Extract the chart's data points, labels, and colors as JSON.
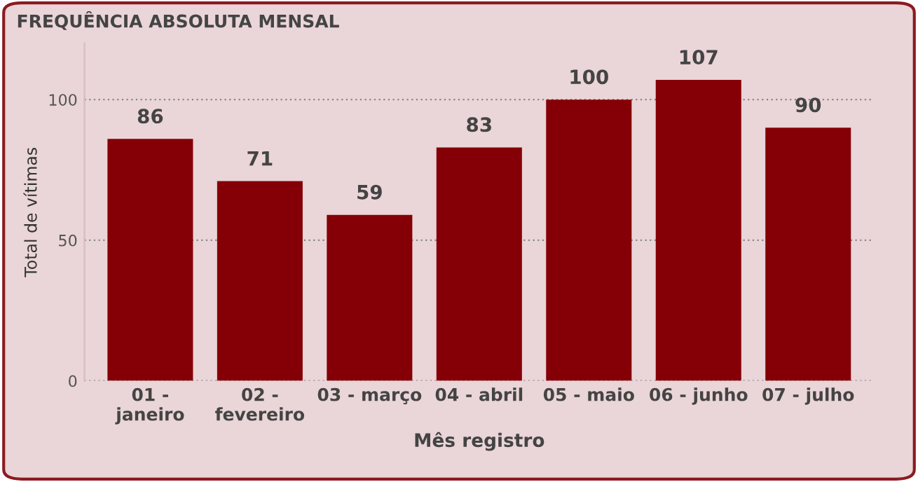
{
  "chart_data": {
    "type": "bar",
    "title": "FREQUÊNCIA ABSOLUTA MENSAL",
    "xlabel": "Mês registro",
    "ylabel": "Total de vítimas",
    "categories": [
      "01 -\njaneiro",
      "02 -\nfevereiro",
      "03 - março",
      "04 - abril",
      "05 - maio",
      "06 - junho",
      "07 - julho"
    ],
    "values": [
      86,
      71,
      59,
      83,
      100,
      107,
      90
    ],
    "color": "#850006",
    "ylim": [
      0,
      120
    ],
    "yticks": [
      0,
      50,
      100
    ],
    "grid": "y",
    "data_labels": true
  }
}
